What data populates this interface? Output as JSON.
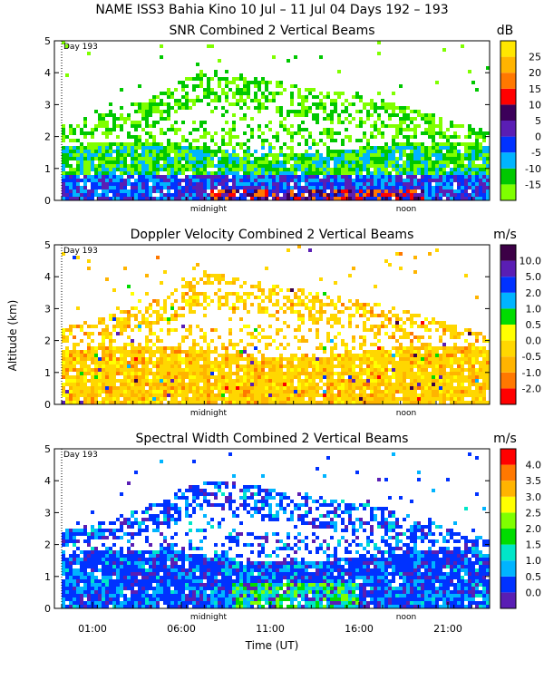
{
  "header": {
    "title": "NAME ISS3 Bahia Kino   10 Jul – 11 Jul 04 Days 192 – 193"
  },
  "labels": {
    "day_marker": "Day 193",
    "midnight": "midnight",
    "noon": "noon",
    "ylabel": "Altitude (km)",
    "xlabel": "Time (UT)"
  },
  "chart_data": [
    {
      "type": "heatmap",
      "title": "SNR Combined 2 Vertical Beams",
      "units": "dB",
      "ylim": [
        0,
        5
      ],
      "yticks": [
        "0",
        "1",
        "2",
        "3",
        "4",
        "5"
      ],
      "colorbar": {
        "levels": [
          "-15",
          "-10",
          "-5",
          "0",
          "5",
          "10",
          "15",
          "20",
          "25"
        ],
        "colors": [
          "#7fff00",
          "#00c800",
          "#00b4ff",
          "#0032ff",
          "#5a1eb4",
          "#3c005a",
          "#ff0000",
          "#ff7800",
          "#ffb400",
          "#ffe600"
        ]
      }
    },
    {
      "type": "heatmap",
      "title": "Doppler Velocity Combined 2 Vertical Beams",
      "units": "m/s",
      "ylim": [
        0,
        5
      ],
      "yticks": [
        "0",
        "1",
        "2",
        "3",
        "4",
        "5"
      ],
      "colorbar": {
        "levels": [
          "-2.0",
          "-1.0",
          "-0.5",
          "0.0",
          "0.5",
          "1.0",
          "2.0",
          "5.0",
          "10.0"
        ],
        "colors": [
          "#ff0000",
          "#ff7800",
          "#ffb400",
          "#ffd700",
          "#ffff00",
          "#00dc00",
          "#00b4ff",
          "#0032ff",
          "#5a1eb4",
          "#3c0046"
        ]
      }
    },
    {
      "type": "heatmap",
      "title": "Spectral Width Combined 2 Vertical Beams",
      "units": "m/s",
      "ylim": [
        0,
        5
      ],
      "yticks": [
        "0",
        "1",
        "2",
        "3",
        "4",
        "5"
      ],
      "xlabel": "Time (UT)",
      "xticks": [
        "01:00",
        "06:00",
        "11:00",
        "16:00",
        "21:00"
      ],
      "colorbar": {
        "levels": [
          "0.0",
          "0.5",
          "1.0",
          "1.5",
          "2.0",
          "2.5",
          "3.0",
          "3.5",
          "4.0"
        ],
        "colors": [
          "#5a1eb4",
          "#0032ff",
          "#00b4ff",
          "#00e6c8",
          "#00dc00",
          "#7fff00",
          "#ffff00",
          "#ffb400",
          "#ff7800",
          "#ff0000"
        ]
      }
    }
  ]
}
